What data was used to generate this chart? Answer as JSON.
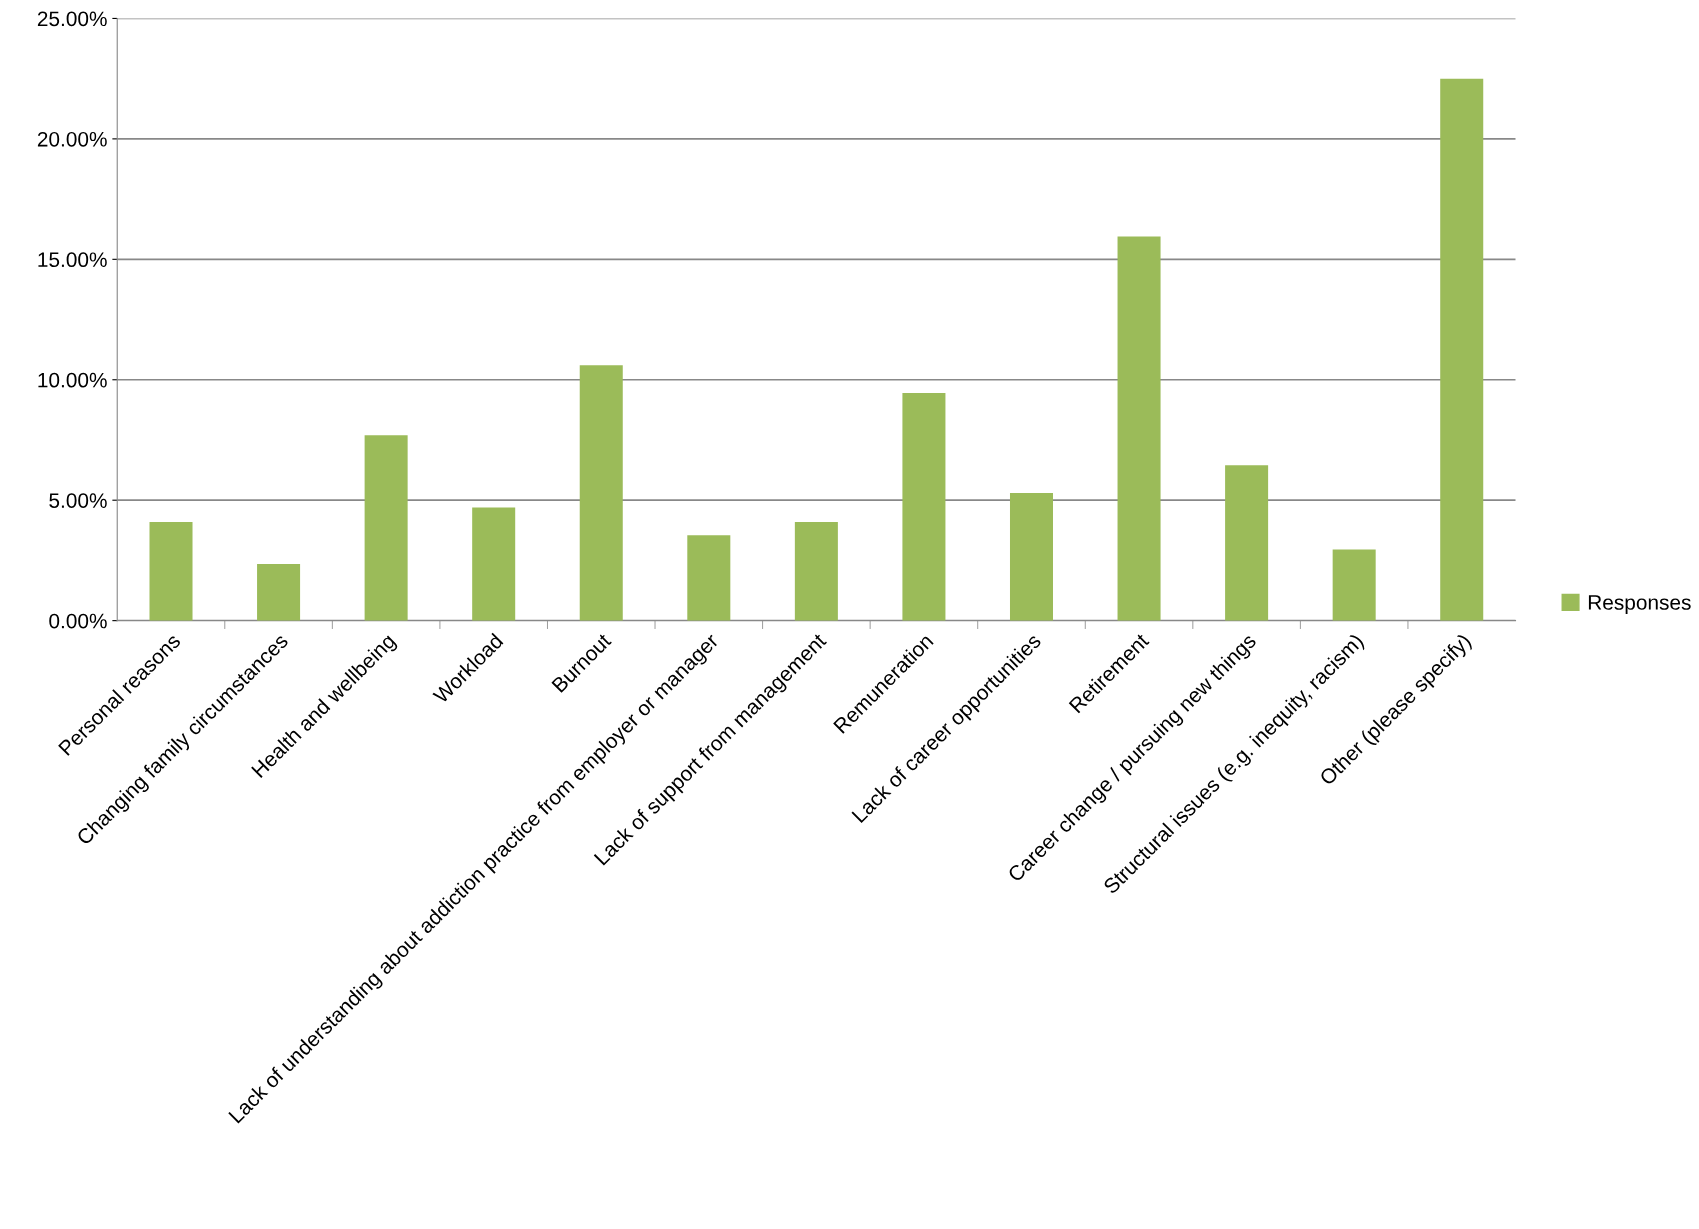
{
  "chart_data": {
    "type": "bar",
    "categories": [
      "Personal reasons",
      "Changing family circumstances",
      "Health and wellbeing",
      "Workload",
      "Burnout",
      "Lack of understanding about addiction practice from employer or manager",
      "Lack of support from management",
      "Remuneration",
      "Lack of career opportunities",
      "Retirement",
      "Career change / pursuing new things",
      "Structural issues (e.g. inequity, racism)",
      "Other (please specify)"
    ],
    "series": [
      {
        "name": "Responses",
        "color": "#9bbb59",
        "values": [
          4.1,
          2.35,
          7.7,
          4.7,
          10.6,
          3.55,
          4.1,
          9.45,
          5.3,
          15.95,
          6.45,
          2.95,
          22.5
        ]
      }
    ],
    "ylim": [
      0,
      25
    ],
    "yticks": [
      {
        "value": 0,
        "label": "0.00%"
      },
      {
        "value": 5,
        "label": "5.00%"
      },
      {
        "value": 10,
        "label": "10.00%"
      },
      {
        "value": 15,
        "label": "15.00%"
      },
      {
        "value": 20,
        "label": "20.00%"
      },
      {
        "value": 25,
        "label": "25.00%"
      }
    ],
    "grid": "y",
    "legend": "right"
  }
}
